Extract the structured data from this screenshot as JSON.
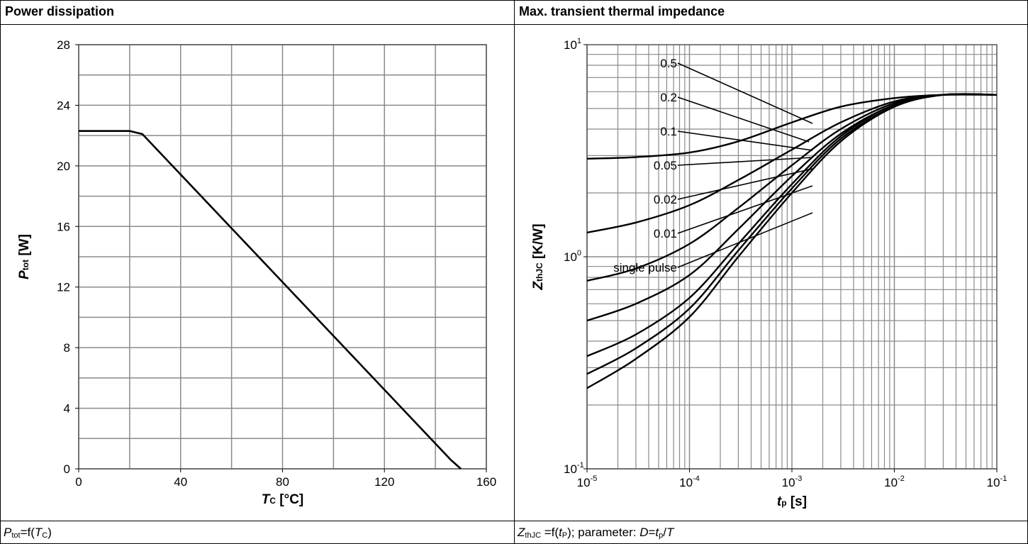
{
  "left_panel": {
    "header": "Power dissipation",
    "footer": {
      "sym": "P",
      "sub": "tot",
      "mid": "=f(",
      "arg": "T",
      "arg_sub": "C",
      "end": ")"
    }
  },
  "right_panel": {
    "header": "Max. transient thermal impedance",
    "footer": {
      "sym": "Z",
      "sub": "thJC",
      "mid": " =f(",
      "arg": "t",
      "arg_sub": "P",
      "rest": "); parameter: ",
      "d": "D",
      "eq": "=",
      "t": "t",
      "t_sub": "p",
      "slash": "/",
      "T": "T"
    }
  },
  "chart_data": [
    {
      "type": "line",
      "title": "Power dissipation",
      "xlabel": {
        "sym": "T",
        "sub": "C",
        "unit": " [°C]"
      },
      "ylabel": {
        "sym": "P",
        "sub": "tot",
        "unit": " [W]"
      },
      "xlim": [
        0,
        160
      ],
      "ylim": [
        0,
        28
      ],
      "xticks": [
        "0",
        "40",
        "80",
        "120",
        "160"
      ],
      "yticks": [
        "0",
        "4",
        "8",
        "12",
        "16",
        "20",
        "24",
        "28"
      ],
      "grid": true,
      "series": [
        {
          "x": [
            0,
            20,
            25,
            146,
            150
          ],
          "y": [
            22.3,
            22.3,
            22.1,
            0.6,
            0
          ]
        }
      ]
    },
    {
      "type": "line",
      "title": "Max. transient thermal impedance",
      "xscale": "log",
      "yscale": "log",
      "xlabel": {
        "sym": "t",
        "sub": "p",
        "unit": " [s]"
      },
      "ylabel": {
        "sym": "Z",
        "sub": "thJC",
        "unit": " [K/W]"
      },
      "xlim": [
        1e-05,
        0.1
      ],
      "ylim": [
        0.1,
        10
      ],
      "xticks": [
        {
          "base": "10",
          "exp": "-5"
        },
        {
          "base": "10",
          "exp": "-4"
        },
        {
          "base": "10",
          "exp": "-3"
        },
        {
          "base": "10",
          "exp": "-2"
        },
        {
          "base": "10",
          "exp": "-1"
        }
      ],
      "yticks": [
        {
          "base": "10",
          "exp": "-1"
        },
        {
          "base": "10",
          "exp": "0"
        },
        {
          "base": "10",
          "exp": "1"
        }
      ],
      "grid": true,
      "annotations": [
        "0.5",
        "0.2",
        "0.1",
        "0.05",
        "0.02",
        "0.01",
        "single pulse"
      ],
      "series": [
        {
          "name": "0.5",
          "x": [
            1e-05,
            3e-05,
            0.0001,
            0.0003,
            0.001,
            0.003,
            0.01,
            0.03,
            0.1
          ],
          "y": [
            2.9,
            2.95,
            3.1,
            3.5,
            4.3,
            5.1,
            5.6,
            5.8,
            5.8
          ]
        },
        {
          "name": "0.2",
          "x": [
            1e-05,
            3e-05,
            0.0001,
            0.0003,
            0.001,
            0.003,
            0.01,
            0.03,
            0.1
          ],
          "y": [
            1.3,
            1.45,
            1.75,
            2.3,
            3.2,
            4.3,
            5.4,
            5.8,
            5.8
          ]
        },
        {
          "name": "0.1",
          "x": [
            1e-05,
            3e-05,
            0.0001,
            0.0003,
            0.001,
            0.003,
            0.01,
            0.03,
            0.1
          ],
          "y": [
            0.77,
            0.88,
            1.15,
            1.7,
            2.7,
            4.0,
            5.3,
            5.8,
            5.8
          ]
        },
        {
          "name": "0.05",
          "x": [
            1e-05,
            3e-05,
            0.0001,
            0.0003,
            0.001,
            0.003,
            0.01,
            0.03,
            0.1
          ],
          "y": [
            0.5,
            0.6,
            0.82,
            1.35,
            2.4,
            3.8,
            5.2,
            5.8,
            5.8
          ]
        },
        {
          "name": "0.02",
          "x": [
            1e-05,
            3e-05,
            0.0001,
            0.0003,
            0.001,
            0.003,
            0.01,
            0.03,
            0.1
          ],
          "y": [
            0.34,
            0.43,
            0.64,
            1.15,
            2.2,
            3.7,
            5.2,
            5.8,
            5.8
          ]
        },
        {
          "name": "0.01",
          "x": [
            1e-05,
            3e-05,
            0.0001,
            0.0003,
            0.001,
            0.003,
            0.01,
            0.03,
            0.1
          ],
          "y": [
            0.28,
            0.37,
            0.57,
            1.07,
            2.1,
            3.6,
            5.1,
            5.8,
            5.8
          ]
        },
        {
          "name": "single pulse",
          "x": [
            1e-05,
            3e-05,
            0.0001,
            0.0003,
            0.001,
            0.003,
            0.01,
            0.03,
            0.1
          ],
          "y": [
            0.24,
            0.33,
            0.52,
            1.0,
            2.0,
            3.5,
            5.1,
            5.8,
            5.8
          ]
        }
      ]
    }
  ]
}
